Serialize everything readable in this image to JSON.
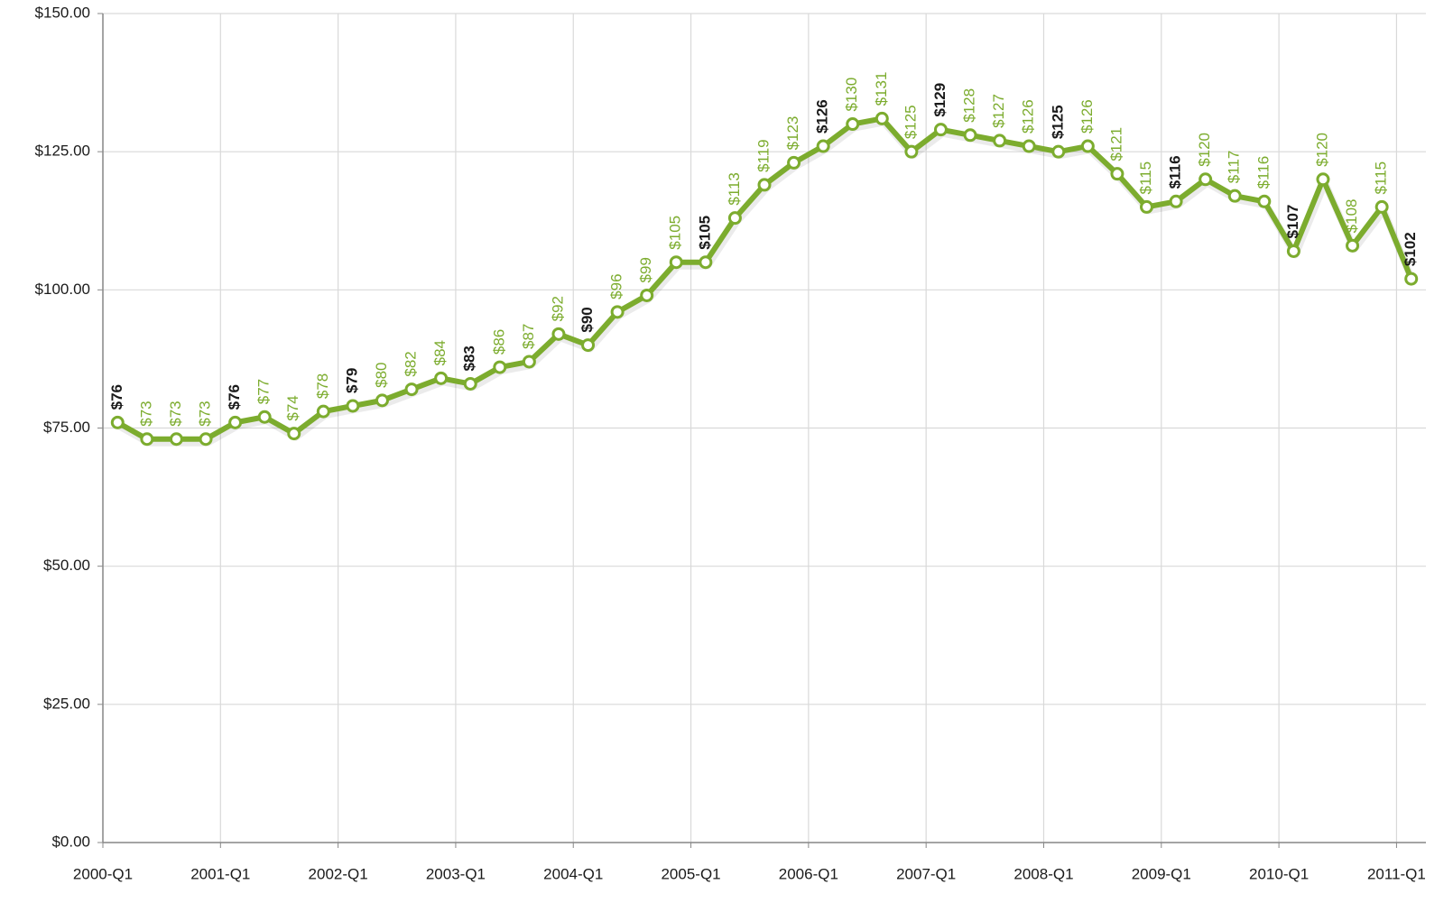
{
  "chart_data": {
    "type": "line",
    "categories": [
      "2000-Q1",
      null,
      null,
      null,
      "2001-Q1",
      null,
      null,
      null,
      "2002-Q1",
      null,
      null,
      null,
      "2003-Q1",
      null,
      null,
      null,
      "2004-Q1",
      null,
      null,
      null,
      "2005-Q1",
      null,
      null,
      null,
      "2006-Q1",
      null,
      null,
      null,
      "2007-Q1",
      null,
      null,
      null,
      "2008-Q1",
      null,
      null,
      null,
      "2009-Q1",
      null,
      null,
      null,
      "2010-Q1",
      null,
      null,
      null,
      "2011-Q1"
    ],
    "values": [
      76,
      73,
      73,
      73,
      76,
      77,
      74,
      78,
      79,
      80,
      82,
      84,
      83,
      86,
      87,
      92,
      90,
      96,
      99,
      105,
      105,
      113,
      119,
      123,
      126,
      130,
      131,
      125,
      129,
      128,
      127,
      126,
      125,
      126,
      121,
      115,
      116,
      120,
      117,
      116,
      107,
      120,
      108,
      115,
      102
    ],
    "value_labels": [
      "$76",
      "$73",
      "$73",
      "$73",
      "$76",
      "$77",
      "$74",
      "$78",
      "$79",
      "$80",
      "$82",
      "$84",
      "$83",
      "$86",
      "$87",
      "$92",
      "$90",
      "$96",
      "$99",
      "$105",
      "$105",
      "$113",
      "$119",
      "$123",
      "$126",
      "$130",
      "$131",
      "$125",
      "$129",
      "$128",
      "$127",
      "$126",
      "$125",
      "$126",
      "$121",
      "$115",
      "$116",
      "$120",
      "$117",
      "$116",
      "$107",
      "$120",
      "$108",
      "$115",
      "$102"
    ],
    "color": "#7cac2e",
    "label_color": "#7cac2e",
    "highlight_label_color": "#1a1a1a",
    "ylim": [
      0,
      150
    ],
    "yticks": [
      {
        "value": 0,
        "label": "$0.00"
      },
      {
        "value": 25,
        "label": "$25.00"
      },
      {
        "value": 50,
        "label": "$50.00"
      },
      {
        "value": 75,
        "label": "$75.00"
      },
      {
        "value": 100,
        "label": "$100.00"
      },
      {
        "value": 125,
        "label": "$125.00"
      },
      {
        "value": 150,
        "label": "$150.00"
      }
    ],
    "grid": true
  }
}
